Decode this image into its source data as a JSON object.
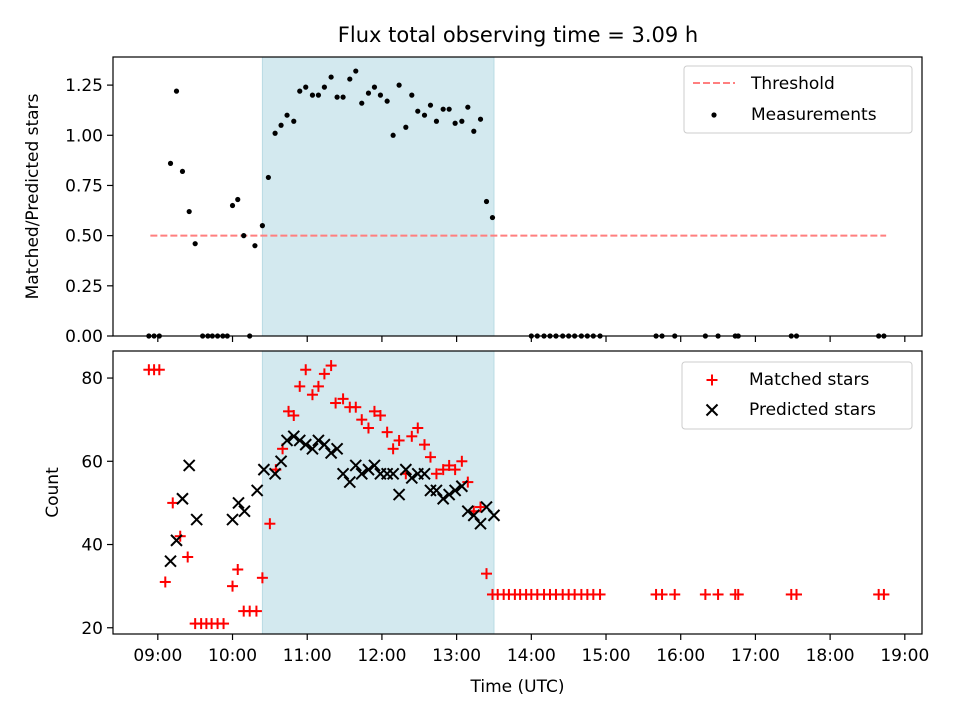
{
  "chart_data": {
    "title": "Flux total observing time = 3.09 h",
    "xlabel": "Time (UTC)",
    "x_unit": "hours since 00:00 UTC",
    "xlim": [
      8.4,
      19.23
    ],
    "x_ticks": [
      {
        "value": 9,
        "label": "09:00"
      },
      {
        "value": 10,
        "label": "10:00"
      },
      {
        "value": 11,
        "label": "11:00"
      },
      {
        "value": 12,
        "label": "12:00"
      },
      {
        "value": 13,
        "label": "13:00"
      },
      {
        "value": 14,
        "label": "14:00"
      },
      {
        "value": 15,
        "label": "15:00"
      },
      {
        "value": 16,
        "label": "16:00"
      },
      {
        "value": 17,
        "label": "17:00"
      },
      {
        "value": 18,
        "label": "18:00"
      },
      {
        "value": 19,
        "label": "19:00"
      }
    ],
    "observing_window": {
      "start": 10.4,
      "end": 13.5,
      "color": "#d3e9ef"
    },
    "colors": {
      "threshold": "#ff7f7f",
      "measurements": "#000000",
      "matched": "#ff0000",
      "predicted": "#000000",
      "span": "#add8e6"
    },
    "top": {
      "type": "scatter",
      "ylabel": "Matched/Predicted stars",
      "ylim": [
        0,
        1.39
      ],
      "y_ticks": [
        {
          "value": 0,
          "label": "0.00"
        },
        {
          "value": 0.25,
          "label": "0.25"
        },
        {
          "value": 0.5,
          "label": "0.50"
        },
        {
          "value": 0.75,
          "label": "0.75"
        },
        {
          "value": 1.0,
          "label": "1.00"
        },
        {
          "value": 1.25,
          "label": "1.25"
        }
      ],
      "threshold": {
        "name": "Threshold",
        "value": 0.5,
        "x_start": 8.9,
        "x_end": 18.75
      },
      "legend": [
        {
          "label": "Threshold",
          "kind": "dashed-line"
        },
        {
          "label": "Measurements",
          "kind": "dot"
        }
      ],
      "legend_position": "top-right",
      "measurements": {
        "name": "Measurements",
        "x": [
          8.88,
          8.95,
          9.02,
          9.17,
          9.25,
          9.33,
          9.42,
          9.5,
          9.6,
          9.67,
          9.73,
          9.8,
          9.87,
          9.93,
          10.0,
          10.07,
          10.15,
          10.23,
          10.3,
          10.4,
          10.48,
          10.57,
          10.65,
          10.73,
          10.82,
          10.9,
          10.98,
          11.07,
          11.15,
          11.23,
          11.32,
          11.4,
          11.48,
          11.57,
          11.65,
          11.73,
          11.82,
          11.9,
          11.98,
          12.07,
          12.15,
          12.23,
          12.32,
          12.4,
          12.48,
          12.57,
          12.65,
          12.73,
          12.82,
          12.9,
          12.98,
          13.07,
          13.15,
          13.23,
          13.32,
          13.4,
          13.48,
          14.0,
          14.08,
          14.17,
          14.25,
          14.33,
          14.42,
          14.5,
          14.58,
          14.67,
          14.75,
          14.83,
          14.92,
          15.67,
          15.75,
          15.92,
          16.33,
          16.5,
          16.73,
          16.77,
          17.48,
          17.55,
          18.65,
          18.72
        ],
        "y": [
          0.0,
          0.0,
          0.0,
          0.86,
          1.22,
          0.82,
          0.62,
          0.46,
          0.0,
          0.0,
          0.0,
          0.0,
          0.0,
          0.0,
          0.65,
          0.68,
          0.5,
          0.0,
          0.45,
          0.55,
          0.79,
          1.01,
          1.05,
          1.1,
          1.07,
          1.22,
          1.24,
          1.2,
          1.2,
          1.24,
          1.29,
          1.19,
          1.19,
          1.28,
          1.32,
          1.16,
          1.21,
          1.24,
          1.2,
          1.17,
          1.0,
          1.25,
          1.04,
          1.2,
          1.12,
          1.1,
          1.15,
          1.07,
          1.13,
          1.13,
          1.06,
          1.07,
          1.14,
          1.02,
          1.08,
          0.67,
          0.59,
          0.0,
          0.0,
          0.0,
          0.0,
          0.0,
          0.0,
          0.0,
          0.0,
          0.0,
          0.0,
          0.0,
          0.0,
          0.0,
          0.0,
          0.0,
          0.0,
          0.0,
          0.0,
          0.0,
          0.0,
          0.0,
          0.0,
          0.0
        ]
      }
    },
    "bottom": {
      "type": "scatter",
      "ylabel": "Count",
      "ylim": [
        18.5,
        86.5
      ],
      "y_ticks": [
        {
          "value": 20,
          "label": "20"
        },
        {
          "value": 40,
          "label": "40"
        },
        {
          "value": 60,
          "label": "60"
        },
        {
          "value": 80,
          "label": "80"
        }
      ],
      "legend": [
        {
          "label": "Matched stars",
          "kind": "plus"
        },
        {
          "label": "Predicted stars",
          "kind": "cross"
        }
      ],
      "legend_position": "top-right",
      "matched": {
        "name": "Matched stars",
        "x": [
          8.88,
          8.95,
          9.02,
          9.1,
          9.2,
          9.3,
          9.4,
          9.5,
          9.58,
          9.65,
          9.72,
          9.8,
          9.88,
          10.0,
          10.07,
          10.15,
          10.23,
          10.32,
          10.4,
          10.5,
          10.58,
          10.67,
          10.75,
          10.82,
          10.9,
          10.98,
          11.07,
          11.15,
          11.23,
          11.32,
          11.38,
          11.48,
          11.57,
          11.65,
          11.73,
          11.82,
          11.9,
          11.98,
          12.07,
          12.15,
          12.23,
          12.32,
          12.4,
          12.48,
          12.57,
          12.65,
          12.73,
          12.82,
          12.9,
          12.98,
          13.07,
          13.15,
          13.23,
          13.32,
          13.4,
          13.48,
          13.55,
          13.63,
          13.7,
          13.78,
          13.85,
          13.93,
          14.0,
          14.08,
          14.17,
          14.25,
          14.33,
          14.42,
          14.5,
          14.58,
          14.67,
          14.75,
          14.83,
          14.92,
          15.67,
          15.75,
          15.92,
          16.33,
          16.5,
          16.73,
          16.77,
          17.48,
          17.55,
          18.65,
          18.72
        ],
        "y": [
          82,
          82,
          82,
          31,
          50,
          42,
          37,
          21,
          21,
          21,
          21,
          21,
          21,
          30,
          34,
          24,
          24,
          24,
          32,
          45,
          58,
          63,
          72,
          71,
          78,
          82,
          76,
          78,
          81,
          83,
          74,
          75,
          73,
          73,
          70,
          68,
          72,
          71,
          67,
          63,
          65,
          57,
          66,
          68,
          64,
          61,
          57,
          58,
          59,
          58,
          60,
          55,
          48,
          49,
          33,
          28,
          28,
          28,
          28,
          28,
          28,
          28,
          28,
          28,
          28,
          28,
          28,
          28,
          28,
          28,
          28,
          28,
          28,
          28,
          28,
          28,
          28,
          28,
          28,
          28,
          28,
          28,
          28,
          28,
          28
        ]
      },
      "predicted": {
        "name": "Predicted stars",
        "x": [
          9.17,
          9.25,
          9.33,
          9.42,
          9.52,
          10.0,
          10.08,
          10.16,
          10.33,
          10.42,
          10.57,
          10.65,
          10.73,
          10.82,
          10.9,
          10.98,
          11.07,
          11.15,
          11.23,
          11.32,
          11.4,
          11.48,
          11.57,
          11.65,
          11.73,
          11.82,
          11.9,
          11.98,
          12.07,
          12.15,
          12.23,
          12.32,
          12.4,
          12.48,
          12.57,
          12.65,
          12.73,
          12.82,
          12.9,
          12.98,
          13.07,
          13.15,
          13.23,
          13.32,
          13.4,
          13.5
        ],
        "y": [
          36,
          41,
          51,
          59,
          46,
          46,
          50,
          48,
          53,
          58,
          57,
          60,
          65,
          66,
          65,
          64,
          63,
          65,
          64,
          62,
          63,
          57,
          55,
          59,
          57,
          58,
          59,
          57,
          57,
          57,
          52,
          58,
          56,
          57,
          57,
          53,
          53,
          51,
          52,
          53,
          54,
          48,
          47,
          45,
          49,
          47
        ]
      }
    }
  }
}
